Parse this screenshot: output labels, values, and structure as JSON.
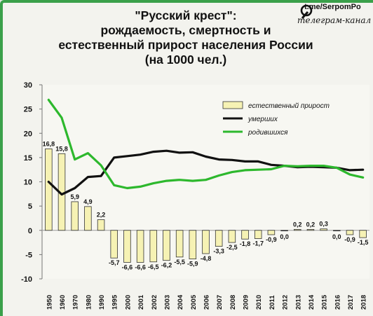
{
  "brand": {
    "handle": "t.me/SerpomPo",
    "subtitle": "телеграм-канал"
  },
  "chart_data": {
    "type": "bar",
    "title": [
      "\"Русский крест\":",
      "рождаемость, смертность и",
      "естественный прирост населения России",
      "(на 1000 чел.)"
    ],
    "categories": [
      "1950",
      "1960",
      "1970",
      "1980",
      "1990",
      "1995",
      "2000",
      "2001",
      "2002",
      "2003",
      "2004",
      "2005",
      "2006",
      "2007",
      "2008",
      "2009",
      "2010",
      "2011",
      "2012",
      "2013",
      "2014",
      "2015",
      "2016",
      "2017",
      "2018"
    ],
    "ylim": [
      -10,
      30
    ],
    "yticks": [
      -10,
      -5,
      0,
      5,
      10,
      15,
      20,
      25,
      30
    ],
    "grid": false,
    "legend_position": "right",
    "series": [
      {
        "name": "естественный прирост",
        "kind": "bar",
        "color": "#f6f2b4",
        "values": [
          16.8,
          15.8,
          5.9,
          4.9,
          2.2,
          -5.7,
          -6.6,
          -6.6,
          -6.5,
          -6.2,
          -5.5,
          -5.9,
          -4.8,
          -3.3,
          -2.5,
          -1.8,
          -1.7,
          -0.9,
          0.0,
          0.2,
          0.2,
          0.3,
          0.0,
          -0.9,
          -1.5
        ],
        "labels": [
          "16,8",
          "15,8",
          "5,9",
          "4,9",
          "2,2",
          "-5,7",
          "-6,6",
          "-6,6",
          "-6,5",
          "-6,2",
          "-5,5",
          "-5,9",
          "-4,8",
          "-3,3",
          "-2,5",
          "-1,8",
          "-1,7",
          "-0,9",
          "0,0",
          "0,2",
          "0,2",
          "0,3",
          "0,0",
          "-0,9",
          "-1,5"
        ]
      },
      {
        "name": "умерших",
        "kind": "line",
        "color": "#111111",
        "values": [
          10.0,
          7.4,
          8.7,
          11.0,
          11.2,
          15.0,
          15.3,
          15.6,
          16.2,
          16.4,
          16.0,
          16.1,
          15.2,
          14.6,
          14.5,
          14.2,
          14.2,
          13.5,
          13.3,
          13.0,
          13.1,
          13.0,
          12.9,
          12.4,
          12.5
        ]
      },
      {
        "name": "родившихся",
        "kind": "line",
        "color": "#2db82d",
        "values": [
          26.9,
          23.2,
          14.6,
          15.9,
          13.4,
          9.3,
          8.7,
          9.0,
          9.7,
          10.2,
          10.4,
          10.2,
          10.4,
          11.3,
          12.0,
          12.4,
          12.5,
          12.6,
          13.3,
          13.2,
          13.3,
          13.3,
          12.9,
          11.5,
          10.9
        ]
      }
    ]
  }
}
